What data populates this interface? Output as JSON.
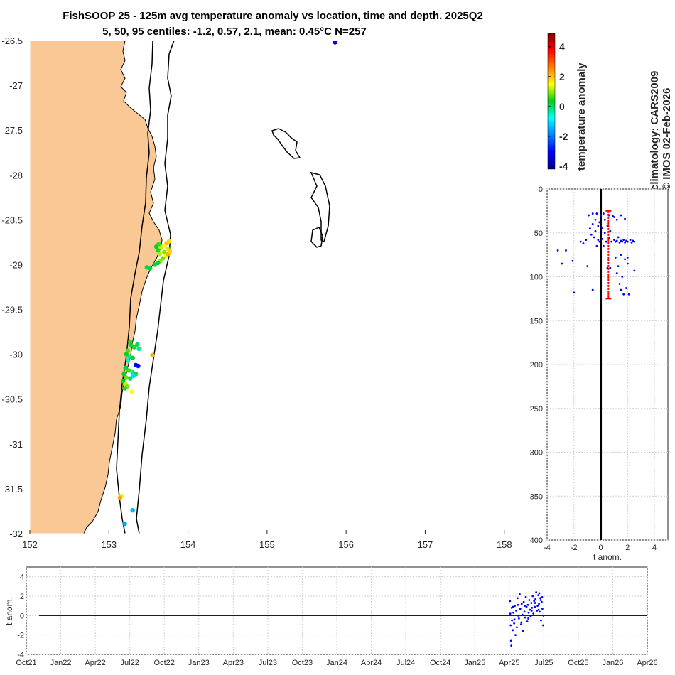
{
  "title_line1": "FishSOOP 25 - 125m avg temperature anomaly vs location, time and depth. 2025Q2",
  "title_line2": "5, 50, 95 centiles: -1.2, 0.57, 2.1, mean: 0.45°C N=257",
  "side_label_1": "climatology: CARS2009",
  "side_label_2": "© IMOS 02-Feb-2026",
  "colors": {
    "land": "#f9c895",
    "coast": "#000000",
    "profile_dots": "#0000ff",
    "median_bar": "#ff0000",
    "grid": "#d9d9d9"
  },
  "chart_data": [
    {
      "type": "scatter",
      "name": "map",
      "xlim": [
        152,
        158.2
      ],
      "ylim": [
        -32,
        -26.5
      ],
      "x_ticks": [
        152,
        153,
        154,
        155,
        156,
        157,
        158
      ],
      "x_tick_labels": [
        "152",
        "153",
        "154",
        "155",
        "156",
        "157",
        "158"
      ],
      "y_ticks": [
        -26.5,
        -27,
        -27.5,
        -28,
        -28.5,
        -29,
        -29.5,
        -30,
        -30.5,
        -31,
        -31.5,
        -32
      ],
      "y_tick_labels": [
        "-26.5",
        "-27",
        "-27.5",
        "-28",
        "-28.5",
        "-29",
        "-29.5",
        "-30",
        "-30.5",
        "-31",
        "-31.5",
        "-32"
      ],
      "points": [
        {
          "lon": 155.86,
          "lat": -26.52,
          "anom": -3.2
        },
        {
          "lon": 153.63,
          "lat": -28.77,
          "anom": 0.6
        },
        {
          "lon": 153.66,
          "lat": -28.81,
          "anom": 1.2
        },
        {
          "lon": 153.7,
          "lat": -28.79,
          "anom": 1.5
        },
        {
          "lon": 153.73,
          "lat": -28.76,
          "anom": 2.0
        },
        {
          "lon": 153.76,
          "lat": -28.74,
          "anom": 1.8
        },
        {
          "lon": 153.74,
          "lat": -28.82,
          "anom": 1.3
        },
        {
          "lon": 153.7,
          "lat": -28.86,
          "anom": 0.9
        },
        {
          "lon": 153.64,
          "lat": -28.88,
          "anom": 1.1
        },
        {
          "lon": 153.62,
          "lat": -28.84,
          "anom": 0.5
        },
        {
          "lon": 153.6,
          "lat": -28.8,
          "anom": 0.3
        },
        {
          "lon": 153.72,
          "lat": -28.9,
          "anom": 1.6
        },
        {
          "lon": 153.68,
          "lat": -28.93,
          "anom": 0.8
        },
        {
          "lon": 153.65,
          "lat": -28.96,
          "anom": 1.0
        },
        {
          "lon": 153.62,
          "lat": -28.98,
          "anom": 0.4
        },
        {
          "lon": 153.58,
          "lat": -29.0,
          "anom": 0.2
        },
        {
          "lon": 153.75,
          "lat": -28.88,
          "anom": 2.2
        },
        {
          "lon": 153.77,
          "lat": -28.85,
          "anom": 1.9
        },
        {
          "lon": 153.52,
          "lat": -29.04,
          "anom": 0.3
        },
        {
          "lon": 153.48,
          "lat": -29.03,
          "anom": 0.1
        },
        {
          "lon": 153.27,
          "lat": -29.86,
          "anom": 0.6
        },
        {
          "lon": 153.28,
          "lat": -29.9,
          "anom": 0.2
        },
        {
          "lon": 153.32,
          "lat": -29.92,
          "anom": 0.5
        },
        {
          "lon": 153.36,
          "lat": -29.89,
          "anom": 0.1
        },
        {
          "lon": 153.38,
          "lat": -29.94,
          "anom": -0.3
        },
        {
          "lon": 153.24,
          "lat": -29.96,
          "anom": 0.7
        },
        {
          "lon": 153.22,
          "lat": -30.0,
          "anom": 0.4
        },
        {
          "lon": 153.26,
          "lat": -30.03,
          "anom": -0.2
        },
        {
          "lon": 153.3,
          "lat": -30.04,
          "anom": 0.3
        },
        {
          "lon": 153.24,
          "lat": -30.07,
          "anom": -0.4
        },
        {
          "lon": 153.34,
          "lat": -30.12,
          "anom": -3.0
        },
        {
          "lon": 153.37,
          "lat": -30.13,
          "anom": -3.3
        },
        {
          "lon": 153.55,
          "lat": -30.01,
          "anom": 2.2
        },
        {
          "lon": 153.21,
          "lat": -30.15,
          "anom": 0.2
        },
        {
          "lon": 153.25,
          "lat": -30.18,
          "anom": 0.6
        },
        {
          "lon": 153.3,
          "lat": -30.2,
          "anom": -0.3
        },
        {
          "lon": 153.34,
          "lat": -30.22,
          "anom": 0.1
        },
        {
          "lon": 153.19,
          "lat": -30.22,
          "anom": 0.4
        },
        {
          "lon": 153.22,
          "lat": -30.26,
          "anom": 0.8
        },
        {
          "lon": 153.27,
          "lat": -30.27,
          "anom": 0.0
        },
        {
          "lon": 153.31,
          "lat": -30.24,
          "anom": -1.1
        },
        {
          "lon": 153.18,
          "lat": -30.3,
          "anom": 0.3
        },
        {
          "lon": 153.21,
          "lat": -30.33,
          "anom": 1.2
        },
        {
          "lon": 153.23,
          "lat": -30.36,
          "anom": 0.9
        },
        {
          "lon": 153.2,
          "lat": -30.38,
          "anom": 0.5
        },
        {
          "lon": 153.29,
          "lat": -30.42,
          "anom": 1.5
        },
        {
          "lon": 153.16,
          "lat": -31.58,
          "anom": 1.4
        },
        {
          "lon": 153.14,
          "lat": -31.6,
          "anom": 2.3
        },
        {
          "lon": 153.3,
          "lat": -31.74,
          "anom": -1.4
        },
        {
          "lon": 153.2,
          "lat": -31.89,
          "anom": -1.6
        }
      ]
    },
    {
      "type": "colorbar",
      "name": "temperature anomaly",
      "label": "temperature anomaly",
      "range": [
        -4.2,
        4.9
      ],
      "ticks": [
        4,
        2,
        0,
        -2,
        -4
      ],
      "tick_labels": [
        "4",
        "2",
        "0",
        "-2",
        "-4"
      ]
    },
    {
      "type": "scatter",
      "name": "depth profile",
      "xlabel": "t anom.",
      "xlim": [
        -4,
        5
      ],
      "ylim": [
        0,
        400
      ],
      "y_reversed": true,
      "x_ticks": [
        -4,
        -2,
        0,
        2,
        4
      ],
      "x_tick_labels": [
        "-4",
        "-2",
        "0",
        "2",
        "4"
      ],
      "y_ticks": [
        0,
        50,
        100,
        150,
        200,
        250,
        300,
        350,
        400
      ],
      "y_tick_labels": [
        "0",
        "50",
        "100",
        "150",
        "200",
        "250",
        "300",
        "350",
        "400"
      ],
      "median_anom": 0.57,
      "median_bar_depth": [
        25,
        125
      ],
      "points": [
        [
          -3.2,
          70
        ],
        [
          -2.9,
          85
        ],
        [
          -2.6,
          70
        ],
        [
          -2.1,
          82
        ],
        [
          -2.0,
          118
        ],
        [
          -1.5,
          60
        ],
        [
          -1.3,
          62
        ],
        [
          -1.1,
          58
        ],
        [
          -0.9,
          30
        ],
        [
          -0.8,
          45
        ],
        [
          -0.7,
          52
        ],
        [
          -0.6,
          40
        ],
        [
          -0.6,
          28
        ],
        [
          -0.5,
          55
        ],
        [
          -0.4,
          48
        ],
        [
          -0.4,
          35
        ],
        [
          -0.3,
          65
        ],
        [
          -0.3,
          28
        ],
        [
          -0.2,
          58
        ],
        [
          -0.2,
          42
        ],
        [
          -0.1,
          38
        ],
        [
          -0.1,
          60
        ],
        [
          0.0,
          30
        ],
        [
          0.1,
          45
        ],
        [
          0.1,
          57
        ],
        [
          0.2,
          28
        ],
        [
          0.3,
          50
        ],
        [
          0.3,
          35
        ],
        [
          0.4,
          60
        ],
        [
          0.5,
          42
        ],
        [
          0.6,
          30
        ],
        [
          0.6,
          56
        ],
        [
          0.7,
          48
        ],
        [
          0.8,
          60
        ],
        [
          0.9,
          31
        ],
        [
          1.0,
          58
        ],
        [
          1.1,
          60
        ],
        [
          1.2,
          59
        ],
        [
          1.3,
          55
        ],
        [
          1.4,
          61
        ],
        [
          1.5,
          59
        ],
        [
          1.6,
          60
        ],
        [
          1.7,
          58
        ],
        [
          1.8,
          61
        ],
        [
          1.9,
          59
        ],
        [
          2.0,
          60
        ],
        [
          2.2,
          58
        ],
        [
          2.3,
          61
        ],
        [
          2.5,
          60
        ],
        [
          2.4,
          59
        ],
        [
          1.0,
          32
        ],
        [
          1.2,
          35
        ],
        [
          1.5,
          30
        ],
        [
          1.8,
          34
        ],
        [
          0.2,
          65
        ],
        [
          -1.0,
          88
        ],
        [
          -0.6,
          115
        ],
        [
          0.7,
          90
        ],
        [
          1.1,
          78
        ],
        [
          1.5,
          75
        ],
        [
          1.8,
          80
        ],
        [
          2.0,
          85
        ],
        [
          1.3,
          88
        ],
        [
          1.6,
          100
        ],
        [
          1.4,
          108
        ],
        [
          1.9,
          113
        ],
        [
          2.1,
          120
        ],
        [
          2.5,
          93
        ],
        [
          1.2,
          96
        ],
        [
          0.5,
          90
        ],
        [
          1.7,
          120
        ],
        [
          1.5,
          115
        ],
        [
          2.0,
          78
        ]
      ]
    },
    {
      "type": "scatter",
      "name": "time series",
      "ylabel": "t anom.",
      "ylim": [
        -4,
        5
      ],
      "y_ticks": [
        4,
        2,
        0,
        -2,
        -4
      ],
      "y_tick_labels": [
        "4",
        "2",
        "0",
        "-2",
        "-4"
      ],
      "x_tick_labels": [
        "Oct21",
        "Jan22",
        "Apr22",
        "Jul22",
        "Oct22",
        "Jan23",
        "Apr23",
        "Jul23",
        "Oct23",
        "Jan24",
        "Apr24",
        "Jul24",
        "Oct24",
        "Jan25",
        "Apr25",
        "Jul25",
        "Oct25",
        "Jan26",
        "Apr26"
      ],
      "x_time_index": [
        0,
        1,
        2,
        3,
        4,
        5,
        6,
        7,
        8,
        9,
        10,
        11,
        12,
        13,
        14,
        15,
        16,
        17,
        18
      ],
      "points": [
        [
          14.02,
          1.5
        ],
        [
          14.03,
          0.2
        ],
        [
          14.04,
          -1.0
        ],
        [
          14.05,
          -2.6
        ],
        [
          14.06,
          -3.1
        ],
        [
          14.07,
          0.8
        ],
        [
          14.08,
          -0.5
        ],
        [
          14.1,
          -1.5
        ],
        [
          14.12,
          0.3
        ],
        [
          14.14,
          -0.8
        ],
        [
          14.16,
          1.0
        ],
        [
          14.18,
          -2.0
        ],
        [
          14.2,
          0.5
        ],
        [
          14.22,
          -1.2
        ],
        [
          14.24,
          1.8
        ],
        [
          14.26,
          0.0
        ],
        [
          14.28,
          -0.3
        ],
        [
          14.3,
          2.2
        ],
        [
          14.32,
          0.7
        ],
        [
          14.34,
          -0.9
        ],
        [
          14.36,
          1.2
        ],
        [
          14.38,
          0.1
        ],
        [
          14.4,
          -1.6
        ],
        [
          14.42,
          1.4
        ],
        [
          14.44,
          0.4
        ],
        [
          14.46,
          -0.2
        ],
        [
          14.48,
          1.9
        ],
        [
          14.5,
          0.9
        ],
        [
          14.52,
          -0.6
        ],
        [
          14.54,
          1.1
        ],
        [
          14.56,
          0.3
        ],
        [
          14.58,
          1.6
        ],
        [
          14.6,
          0.6
        ],
        [
          14.62,
          -0.1
        ],
        [
          14.64,
          1.3
        ],
        [
          14.66,
          0.8
        ],
        [
          14.68,
          2.0
        ],
        [
          14.7,
          0.2
        ],
        [
          14.72,
          1.5
        ],
        [
          14.74,
          0.9
        ],
        [
          14.76,
          1.7
        ],
        [
          14.78,
          2.4
        ],
        [
          14.8,
          0.5
        ],
        [
          14.82,
          1.0
        ],
        [
          14.84,
          2.1
        ],
        [
          14.86,
          1.2
        ],
        [
          14.88,
          0.4
        ],
        [
          14.9,
          1.8
        ],
        [
          14.92,
          -0.5
        ],
        [
          14.94,
          1.4
        ],
        [
          14.96,
          0.7
        ],
        [
          14.98,
          -1.0
        ],
        [
          14.11,
          0.9
        ],
        [
          14.15,
          -0.4
        ],
        [
          14.25,
          1.1
        ],
        [
          14.35,
          -0.7
        ],
        [
          14.45,
          1.0
        ],
        [
          14.55,
          -0.3
        ],
        [
          14.65,
          0.5
        ],
        [
          14.75,
          1.3
        ],
        [
          14.85,
          0.6
        ],
        [
          14.95,
          1.9
        ],
        [
          14.99,
          0.0
        ],
        [
          14.87,
          2.3
        ],
        [
          14.91,
          1.6
        ]
      ]
    }
  ]
}
